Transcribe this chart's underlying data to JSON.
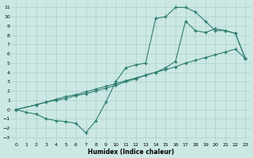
{
  "xlabel": "Humidex (Indice chaleur)",
  "bg_color": "#cce8e4",
  "grid_color": "#aacfca",
  "line_color": "#2d7d6f",
  "xlim": [
    -0.5,
    23.5
  ],
  "ylim": [
    -3.5,
    11.5
  ],
  "xticks": [
    0,
    1,
    2,
    3,
    4,
    5,
    6,
    7,
    8,
    9,
    10,
    11,
    12,
    13,
    14,
    15,
    16,
    17,
    18,
    19,
    20,
    21,
    22,
    23
  ],
  "yticks": [
    -3,
    -2,
    -1,
    0,
    1,
    2,
    3,
    4,
    5,
    6,
    7,
    8,
    9,
    10,
    11
  ],
  "line1_x": [
    0,
    1,
    2,
    3,
    4,
    5,
    6,
    7,
    8,
    9,
    10,
    11,
    12,
    13,
    14,
    15,
    16,
    17,
    18,
    19,
    20,
    21,
    22,
    23
  ],
  "line1_y": [
    0,
    -0.3,
    -0.5,
    -1.0,
    -1.2,
    -1.3,
    -1.5,
    -2.5,
    -1.2,
    0.8,
    3.0,
    4.5,
    4.8,
    5.0,
    9.8,
    10.0,
    11.0,
    11.0,
    10.5,
    9.5,
    8.5,
    8.5,
    8.2,
    5.5
  ],
  "line2_x": [
    0,
    2,
    3,
    4,
    5,
    6,
    7,
    8,
    9,
    10,
    11,
    12,
    13,
    14,
    15,
    16,
    17,
    18,
    19,
    20,
    21,
    22,
    23
  ],
  "line2_y": [
    0,
    0.5,
    0.8,
    1.1,
    1.4,
    1.6,
    1.9,
    2.2,
    2.5,
    2.8,
    3.1,
    3.4,
    3.7,
    4.0,
    4.3,
    4.6,
    5.0,
    5.3,
    5.6,
    5.9,
    6.2,
    6.5,
    5.5
  ],
  "line3_x": [
    0,
    2,
    3,
    4,
    5,
    6,
    7,
    8,
    9,
    10,
    11,
    12,
    13,
    14,
    15,
    16,
    17,
    18,
    19,
    20,
    21,
    22,
    23
  ],
  "line3_y": [
    0,
    0.5,
    0.8,
    1.0,
    1.2,
    1.5,
    1.7,
    2.0,
    2.3,
    2.6,
    3.0,
    3.3,
    3.7,
    4.0,
    4.5,
    5.2,
    9.5,
    8.5,
    8.3,
    8.7,
    8.5,
    8.2,
    5.5
  ],
  "marker": "+",
  "markersize": 2.5,
  "linewidth": 0.8,
  "tick_fontsize": 4.5,
  "xlabel_fontsize": 5.5
}
